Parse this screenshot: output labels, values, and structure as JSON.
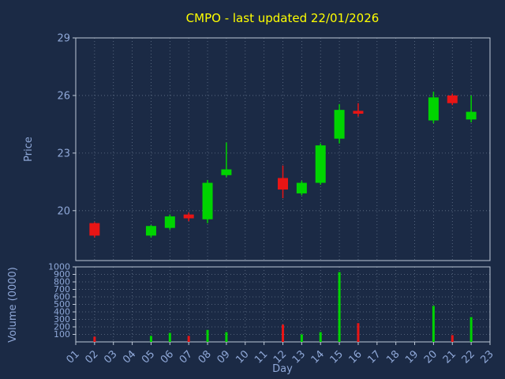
{
  "title": "CMPO - last updated 22/01/2026",
  "axis_labels": {
    "price": "Price",
    "volume": "Volume (0000)",
    "x": "Day"
  },
  "colors": {
    "background": "#1b2a45",
    "up": "#00d400",
    "down": "#e81515",
    "title": "#ffff00",
    "text": "#8fa8d8",
    "frame": "#bdc8d6",
    "grid": "#9fb0c4"
  },
  "chart_data": {
    "type": "candlestick+volume",
    "x_ticks": [
      "01",
      "02",
      "03",
      "04",
      "05",
      "06",
      "07",
      "08",
      "09",
      "10",
      "11",
      "12",
      "13",
      "14",
      "15",
      "16",
      "17",
      "18",
      "19",
      "20",
      "21",
      "22",
      "23"
    ],
    "price_ticks": [
      20,
      23,
      26,
      29
    ],
    "price_range": [
      17.4,
      29
    ],
    "volume_ticks": [
      100,
      200,
      300,
      400,
      500,
      600,
      700,
      800,
      900,
      1000
    ],
    "volume_range": [
      0,
      1000
    ],
    "candles": [
      {
        "day": 2,
        "open": 19.35,
        "high": 19.4,
        "low": 18.6,
        "close": 18.7,
        "volume": 70
      },
      {
        "day": 5,
        "open": 18.7,
        "high": 19.25,
        "low": 18.6,
        "close": 19.2,
        "volume": 80
      },
      {
        "day": 6,
        "open": 19.1,
        "high": 19.8,
        "low": 19.0,
        "close": 19.7,
        "volume": 120
      },
      {
        "day": 7,
        "open": 19.8,
        "high": 19.9,
        "low": 19.45,
        "close": 19.6,
        "volume": 80
      },
      {
        "day": 8,
        "open": 19.55,
        "high": 21.6,
        "low": 19.35,
        "close": 21.45,
        "volume": 160
      },
      {
        "day": 9,
        "open": 21.85,
        "high": 23.55,
        "low": 21.75,
        "close": 22.15,
        "volume": 130
      },
      {
        "day": 12,
        "open": 21.7,
        "high": 22.35,
        "low": 20.65,
        "close": 21.1,
        "volume": 230
      },
      {
        "day": 13,
        "open": 20.9,
        "high": 21.55,
        "low": 20.8,
        "close": 21.45,
        "volume": 100
      },
      {
        "day": 14,
        "open": 21.45,
        "high": 23.5,
        "low": 21.35,
        "close": 23.4,
        "volume": 130
      },
      {
        "day": 15,
        "open": 23.75,
        "high": 25.55,
        "low": 23.5,
        "close": 25.25,
        "volume": 930
      },
      {
        "day": 16,
        "open": 25.2,
        "high": 25.6,
        "low": 24.9,
        "close": 25.05,
        "volume": 250
      },
      {
        "day": 20,
        "open": 24.7,
        "high": 26.2,
        "low": 24.55,
        "close": 25.9,
        "volume": 480
      },
      {
        "day": 21,
        "open": 26.0,
        "high": 26.1,
        "low": 25.5,
        "close": 25.6,
        "volume": 90
      },
      {
        "day": 22,
        "open": 24.75,
        "high": 26.0,
        "low": 24.6,
        "close": 25.15,
        "volume": 330
      }
    ]
  }
}
